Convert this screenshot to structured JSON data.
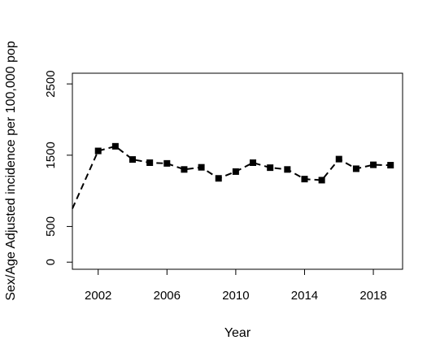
{
  "chart_data": {
    "type": "line",
    "title": "",
    "xlabel": "Year",
    "ylabel": "Sex/Age Adjusted incidence per 100,000 pop",
    "xlim": [
      2000.5,
      2019.7
    ],
    "ylim": [
      -100,
      2650
    ],
    "xticks": [
      "2002",
      "2006",
      "2010",
      "2014",
      "2018"
    ],
    "yticks": [
      "0",
      "500",
      "1500",
      "2500"
    ],
    "series": [
      {
        "line_style": "dashed",
        "marker": "square",
        "line_start": {
          "x": 2000.5,
          "y": 750
        },
        "x": [
          2002,
          2003,
          2004,
          2005,
          2006,
          2007,
          2008,
          2009,
          2010,
          2011,
          2012,
          2013,
          2014,
          2015,
          2016,
          2017,
          2018,
          2019
        ],
        "y": [
          1560,
          1625,
          1440,
          1395,
          1385,
          1300,
          1330,
          1175,
          1270,
          1395,
          1325,
          1300,
          1165,
          1150,
          1445,
          1310,
          1365,
          1360
        ]
      }
    ]
  }
}
